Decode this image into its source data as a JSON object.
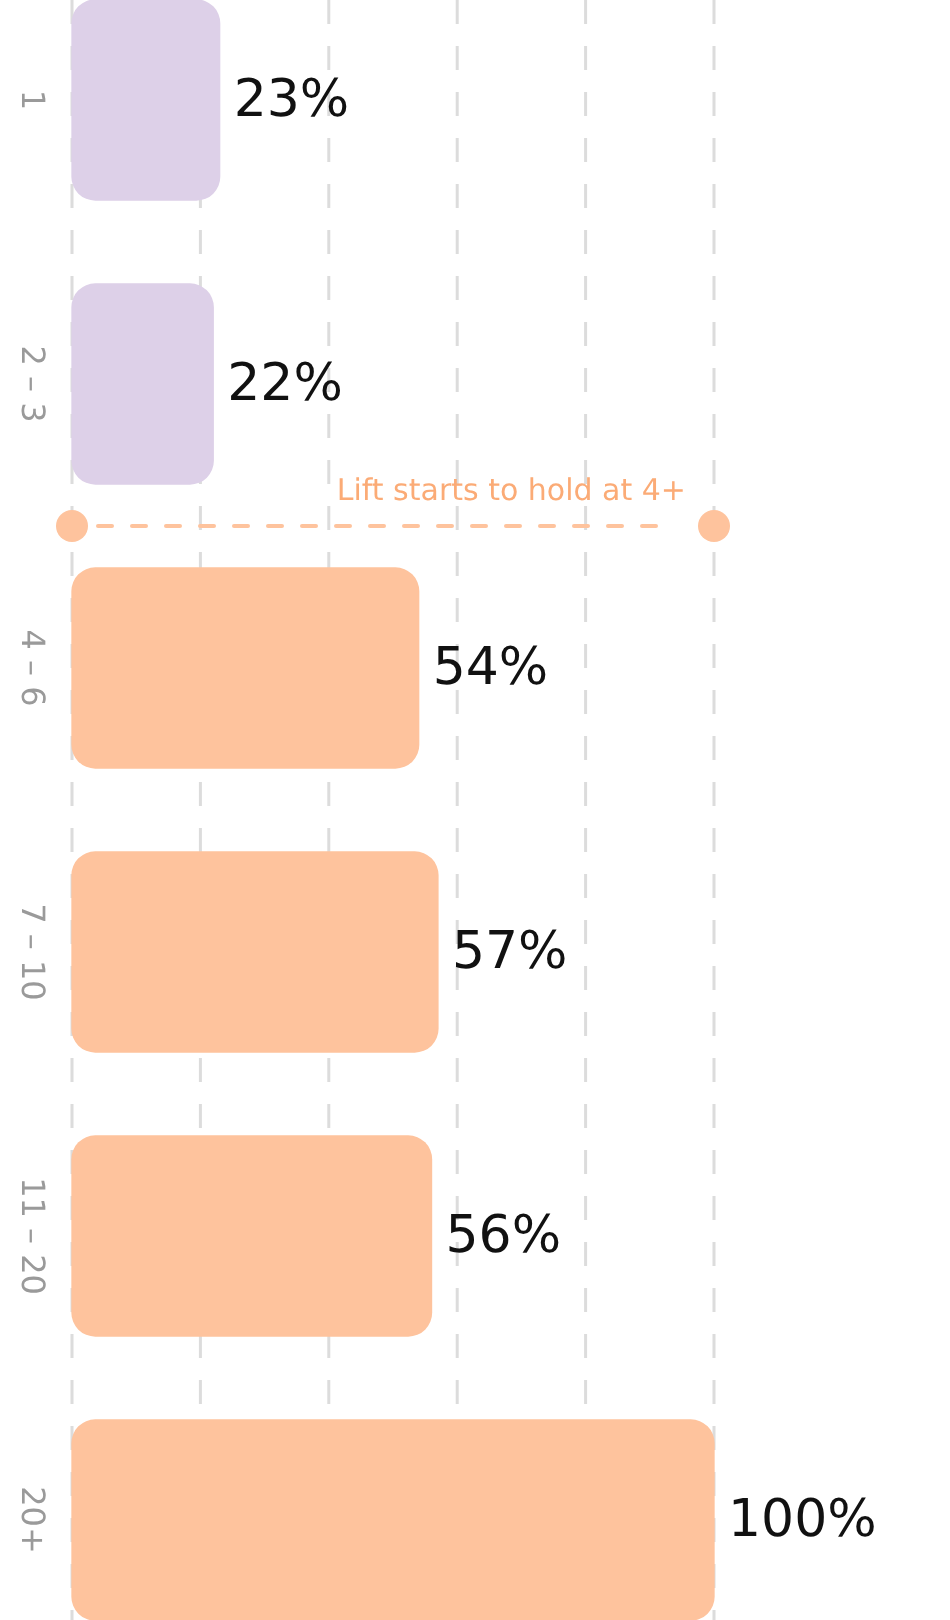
{
  "chart_data": {
    "type": "bar",
    "orientation": "horizontal",
    "categories": [
      "1",
      "2 – 3",
      "4 – 6",
      "7 – 10",
      "11 – 20",
      "20+"
    ],
    "values": [
      23,
      22,
      54,
      57,
      56,
      100
    ],
    "colors": [
      "#ddd0e8",
      "#ddd0e8",
      "#fec39d",
      "#fec39d",
      "#fec39d",
      "#fec39d"
    ],
    "value_labels": [
      "23%",
      "22%",
      "54%",
      "57%",
      "56%",
      "100%"
    ],
    "xlim": [
      0,
      100
    ],
    "xticks": [
      {
        "value": 0,
        "label": null
      },
      {
        "value": 20,
        "label": null
      },
      {
        "value": 40,
        "label": null
      },
      {
        "value": 60,
        "label": null
      },
      {
        "value": 80,
        "label": null
      },
      {
        "value": 100,
        "label": null
      }
    ],
    "grid": "x",
    "tick_labels": "y",
    "legend": false,
    "annotations": [
      "Lift starts to hold at 4+"
    ]
  }
}
